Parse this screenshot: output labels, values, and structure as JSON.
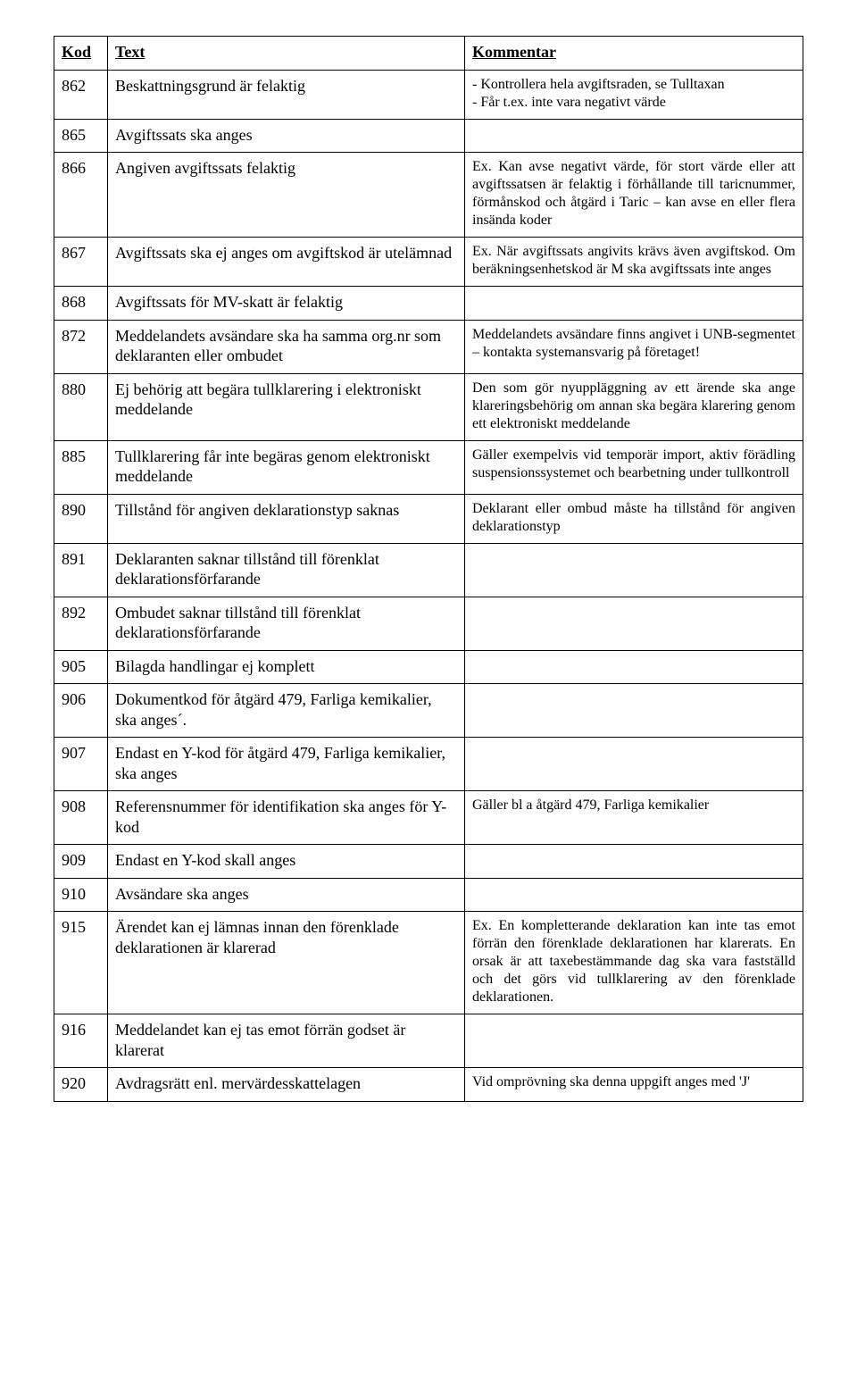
{
  "headers": {
    "kod": "Kod",
    "text": "Text",
    "kommentar": "Kommentar"
  },
  "rows": [
    {
      "kod": "862",
      "text": "Beskattningsgrund är felaktig",
      "kommentar": "- Kontrollera hela avgiftsraden, se Tulltaxan\n- Får t.ex. inte vara negativt värde",
      "justify": false
    },
    {
      "kod": "865",
      "text": "Avgiftssats ska anges",
      "kommentar": "",
      "justify": false
    },
    {
      "kod": "866",
      "text": "Angiven avgiftssats felaktig",
      "kommentar": "Ex. Kan avse negativt värde, för stort värde eller att avgiftssatsen är felaktig i förhållande till taricnummer, förmånskod och åtgärd i Taric – kan avse en eller flera insända koder",
      "justify": true
    },
    {
      "kod": "867",
      "text": "Avgiftssats ska ej anges om avgiftskod är utelämnad",
      "kommentar": "Ex. När avgiftssats angivits krävs även avgiftskod. Om beräkningsenhetskod är M ska avgiftssats inte anges",
      "justify": true
    },
    {
      "kod": "868",
      "text": "Avgiftssats för MV-skatt är felaktig",
      "kommentar": "",
      "justify": false
    },
    {
      "kod": "872",
      "text": "Meddelandets avsändare ska ha samma org.nr som deklaranten eller ombudet",
      "kommentar": "Meddelandets avsändare finns angivet i UNB-segmentet – kontakta systemansvarig på företaget!",
      "justify": true
    },
    {
      "kod": "880",
      "text": "Ej behörig att begära tullklarering i elektroniskt meddelande",
      "kommentar": "Den som gör nyuppläggning av ett ärende ska ange klareringsbehörig om annan ska begära klarering genom ett elektroniskt meddelande",
      "justify": true
    },
    {
      "kod": "885",
      "text": "Tullklarering får inte begäras genom elektroniskt meddelande",
      "kommentar": "Gäller exempelvis vid temporär import, aktiv förädling suspensionssystemet och bearbetning under tullkontroll",
      "justify": true
    },
    {
      "kod": "890",
      "text": "Tillstånd för angiven deklarationstyp saknas",
      "kommentar": "Deklarant eller ombud måste ha tillstånd för angiven deklarationstyp",
      "justify": true
    },
    {
      "kod": "891",
      "text": "Deklaranten saknar tillstånd till förenklat deklarationsförfarande",
      "kommentar": "",
      "justify": false
    },
    {
      "kod": "892",
      "text": "Ombudet saknar tillstånd till förenklat deklarationsförfarande",
      "kommentar": "",
      "justify": false
    },
    {
      "kod": "905",
      "text": "Bilagda handlingar ej komplett",
      "kommentar": "",
      "justify": false
    },
    {
      "kod": "906",
      "text": "Dokumentkod för åtgärd 479, Farliga kemikalier, ska anges´.",
      "kommentar": "",
      "justify": false
    },
    {
      "kod": "907",
      "text": "Endast en Y-kod för åtgärd 479, Farliga kemikalier, ska anges",
      "kommentar": "",
      "justify": false
    },
    {
      "kod": "908",
      "text": "Referensnummer för identifikation  ska anges för Y-kod",
      "kommentar": "Gäller bl a åtgärd 479, Farliga kemikalier",
      "justify": false
    },
    {
      "kod": "909",
      "text": "Endast en Y-kod skall anges",
      "kommentar": "",
      "justify": false
    },
    {
      "kod": "910",
      "text": "Avsändare ska anges",
      "kommentar": "",
      "justify": false
    },
    {
      "kod": "915",
      "text": "Ärendet kan ej lämnas innan den förenklade deklarationen är klarerad",
      "kommentar": "Ex. En kompletterande deklaration kan inte tas emot förrän den förenklade deklarationen har klarerats. En orsak är att taxebestämmande dag ska vara fastställd och det görs vid tullklarering av den förenklade deklarationen.",
      "justify": true
    },
    {
      "kod": "916",
      "text": "Meddelandet kan ej tas emot förrän godset är klarerat",
      "kommentar": "",
      "justify": false
    },
    {
      "kod": "920",
      "text": "Avdragsrätt enl. mervärdesskattelagen",
      "kommentar": "Vid omprövning ska denna uppgift anges med 'J'",
      "justify": false
    }
  ]
}
